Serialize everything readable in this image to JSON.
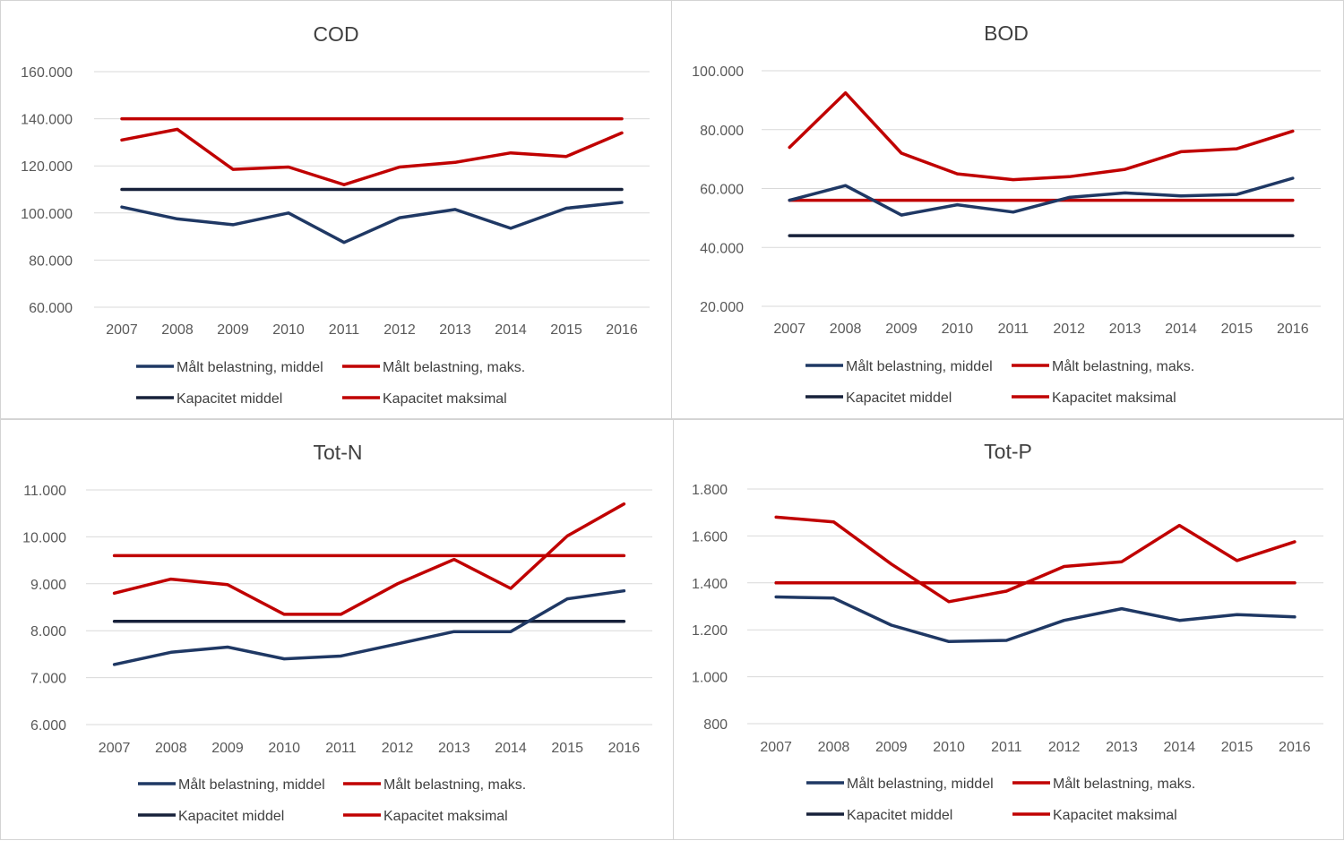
{
  "chart_data": [
    {
      "type": "line",
      "title": "COD",
      "categories": [
        "2007",
        "2008",
        "2009",
        "2010",
        "2011",
        "2012",
        "2013",
        "2014",
        "2015",
        "2016"
      ],
      "yticks": [
        "60.000",
        "80.000",
        "100.000",
        "120.000",
        "140.000",
        "160.000"
      ],
      "ylim": [
        60000,
        160000
      ],
      "grid": true,
      "legend": "bottom",
      "series": [
        {
          "name": "Målt belastning, middel",
          "color": "#1f3864",
          "values": [
            102500,
            97500,
            95000,
            100000,
            87500,
            98000,
            101500,
            93500,
            102000,
            104500
          ]
        },
        {
          "name": "Målt belastning, maks.",
          "color": "#c00000",
          "values": [
            131000,
            135500,
            118500,
            119500,
            112000,
            119500,
            121500,
            125500,
            124000,
            134000
          ]
        },
        {
          "name": "Kapacitet middel",
          "color": "#17213a",
          "values": [
            110000,
            110000,
            110000,
            110000,
            110000,
            110000,
            110000,
            110000,
            110000,
            110000
          ]
        },
        {
          "name": "Kapacitet maksimal",
          "color": "#c00000",
          "values": [
            140000,
            140000,
            140000,
            140000,
            140000,
            140000,
            140000,
            140000,
            140000,
            140000
          ]
        }
      ]
    },
    {
      "type": "line",
      "title": "BOD",
      "categories": [
        "2007",
        "2008",
        "2009",
        "2010",
        "2011",
        "2012",
        "2013",
        "2014",
        "2015",
        "2016"
      ],
      "yticks": [
        "20.000",
        "40.000",
        "60.000",
        "80.000",
        "100.000"
      ],
      "ylim": [
        20000,
        100000
      ],
      "grid": true,
      "legend": "bottom",
      "series": [
        {
          "name": "Målt belastning, middel",
          "color": "#1f3864",
          "values": [
            56000,
            61000,
            51000,
            54500,
            52000,
            57000,
            58500,
            57500,
            58000,
            63500
          ]
        },
        {
          "name": "Målt belastning, maks.",
          "color": "#c00000",
          "values": [
            74000,
            92500,
            72000,
            65000,
            63000,
            64000,
            66500,
            72500,
            73500,
            79500
          ]
        },
        {
          "name": "Kapacitet middel",
          "color": "#17213a",
          "values": [
            44000,
            44000,
            44000,
            44000,
            44000,
            44000,
            44000,
            44000,
            44000,
            44000
          ]
        },
        {
          "name": "Kapacitet maksimal",
          "color": "#c00000",
          "values": [
            56000,
            56000,
            56000,
            56000,
            56000,
            56000,
            56000,
            56000,
            56000,
            56000
          ]
        }
      ]
    },
    {
      "type": "line",
      "title": "Tot-N",
      "categories": [
        "2007",
        "2008",
        "2009",
        "2010",
        "2011",
        "2012",
        "2013",
        "2014",
        "2015",
        "2016"
      ],
      "yticks": [
        "6.000",
        "7.000",
        "8.000",
        "9.000",
        "10.000",
        "11.000"
      ],
      "ylim": [
        6000,
        11000
      ],
      "grid": true,
      "legend": "bottom",
      "series": [
        {
          "name": "Målt belastning, middel",
          "color": "#1f3864",
          "values": [
            7280,
            7540,
            7650,
            7400,
            7460,
            7720,
            7980,
            7980,
            8680,
            8850
          ]
        },
        {
          "name": "Målt belastning, maks.",
          "color": "#c00000",
          "values": [
            8800,
            9100,
            8980,
            8350,
            8350,
            9000,
            9520,
            8900,
            10020,
            10700
          ]
        },
        {
          "name": "Kapacitet middel",
          "color": "#17213a",
          "values": [
            8200,
            8200,
            8200,
            8200,
            8200,
            8200,
            8200,
            8200,
            8200,
            8200
          ]
        },
        {
          "name": "Kapacitet maksimal",
          "color": "#c00000",
          "values": [
            9600,
            9600,
            9600,
            9600,
            9600,
            9600,
            9600,
            9600,
            9600,
            9600
          ]
        }
      ]
    },
    {
      "type": "line",
      "title": "Tot-P",
      "categories": [
        "2007",
        "2008",
        "2009",
        "2010",
        "2011",
        "2012",
        "2013",
        "2014",
        "2015",
        "2016"
      ],
      "yticks": [
        "800",
        "1.000",
        "1.200",
        "1.400",
        "1.600",
        "1.800"
      ],
      "ylim": [
        800,
        1800
      ],
      "grid": true,
      "legend": "bottom",
      "series": [
        {
          "name": "Målt belastning, middel",
          "color": "#1f3864",
          "values": [
            1340,
            1335,
            1220,
            1150,
            1155,
            1240,
            1290,
            1240,
            1265,
            1255
          ]
        },
        {
          "name": "Målt belastning, maks.",
          "color": "#c00000",
          "values": [
            1680,
            1660,
            1480,
            1320,
            1365,
            1470,
            1490,
            1645,
            1495,
            1575
          ]
        },
        {
          "name": "Kapacitet middel",
          "color": "#17213a",
          "values": [
            1400,
            1400,
            1400,
            1400,
            1400,
            1400,
            1400,
            1400,
            1400,
            1400
          ]
        },
        {
          "name": "Kapacitet maksimal",
          "color": "#c00000",
          "values": [
            1400,
            1400,
            1400,
            1400,
            1400,
            1400,
            1400,
            1400,
            1400,
            1400
          ]
        }
      ]
    }
  ]
}
